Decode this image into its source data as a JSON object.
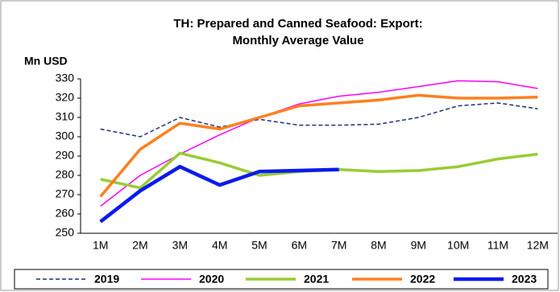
{
  "chart_data": {
    "type": "line",
    "title": [
      "TH: Prepared and Canned Seafood: Export:",
      "Monthly Average Value"
    ],
    "y_label": "Mn USD",
    "categories": [
      "1M",
      "2M",
      "3M",
      "4M",
      "5M",
      "6M",
      "7M",
      "8M",
      "9M",
      "10M",
      "11M",
      "12M"
    ],
    "ylim": [
      250,
      330
    ],
    "yticks": [
      250,
      260,
      270,
      280,
      290,
      300,
      310,
      320,
      330
    ],
    "grid": false,
    "legend": "bottom",
    "series": [
      {
        "name": "2019",
        "color": "#1f2f7a",
        "dash": true,
        "line_width": 1.5,
        "values": [
          304,
          300,
          310,
          305,
          309,
          306,
          306,
          306.5,
          310,
          316,
          317.5,
          314.5
        ]
      },
      {
        "name": "2020",
        "color": "#ff00ff",
        "dash": false,
        "line_width": 1.5,
        "values": [
          264,
          280,
          291,
          301,
          310,
          317,
          321,
          323,
          326,
          329,
          328.5,
          325
        ]
      },
      {
        "name": "2021",
        "color": "#99cc33",
        "dash": false,
        "line_width": 3.5,
        "values": [
          278,
          273.5,
          291.5,
          286.5,
          280,
          282,
          283,
          282,
          282.5,
          284.5,
          288.5,
          291
        ]
      },
      {
        "name": "2022",
        "color": "#ff7f1f",
        "dash": false,
        "line_width": 3.5,
        "values": [
          269,
          293.5,
          307,
          304,
          310,
          316,
          317.5,
          319,
          321.5,
          320,
          320,
          320.5
        ]
      },
      {
        "name": "2023",
        "color": "#0a1aee",
        "dash": false,
        "line_width": 4.5,
        "values": [
          256,
          272,
          284.5,
          275,
          282,
          282.5,
          283,
          null,
          null,
          null,
          null,
          null
        ]
      }
    ]
  }
}
